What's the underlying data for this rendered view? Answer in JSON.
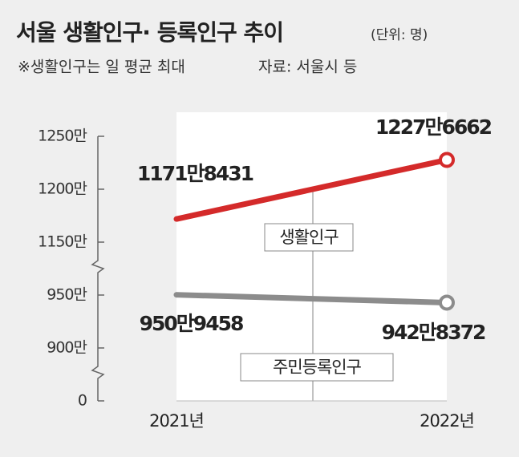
{
  "chart_data": {
    "type": "line",
    "title": "서울 생활인구· 등록인구 추이",
    "unit": "(단위: 명)",
    "subtitle": "※생활인구는 일 평균 최대",
    "source": "자료: 서울시 등",
    "categories": [
      "2021년",
      "2022년"
    ],
    "series": [
      {
        "name": "생활인구",
        "color": "#d42a2a",
        "values": [
          11718431,
          12276662
        ],
        "value_labels": [
          "1171만8431",
          "1227만6662"
        ]
      },
      {
        "name": "주민등록인구",
        "color": "#8c8c8c",
        "values": [
          9509458,
          9428372
        ],
        "value_labels": [
          "950만9458",
          "942만8372"
        ]
      }
    ],
    "ylim": [
      0,
      12500000
    ],
    "yticks": [
      {
        "value": 0,
        "label": "0"
      },
      {
        "value": 9000000,
        "label": "900만"
      },
      {
        "value": 9500000,
        "label": "950만"
      },
      {
        "value": 11500000,
        "label": "1150만"
      },
      {
        "value": 12000000,
        "label": "1200만"
      },
      {
        "value": 12500000,
        "label": "1250만"
      }
    ],
    "axis_break": true
  }
}
